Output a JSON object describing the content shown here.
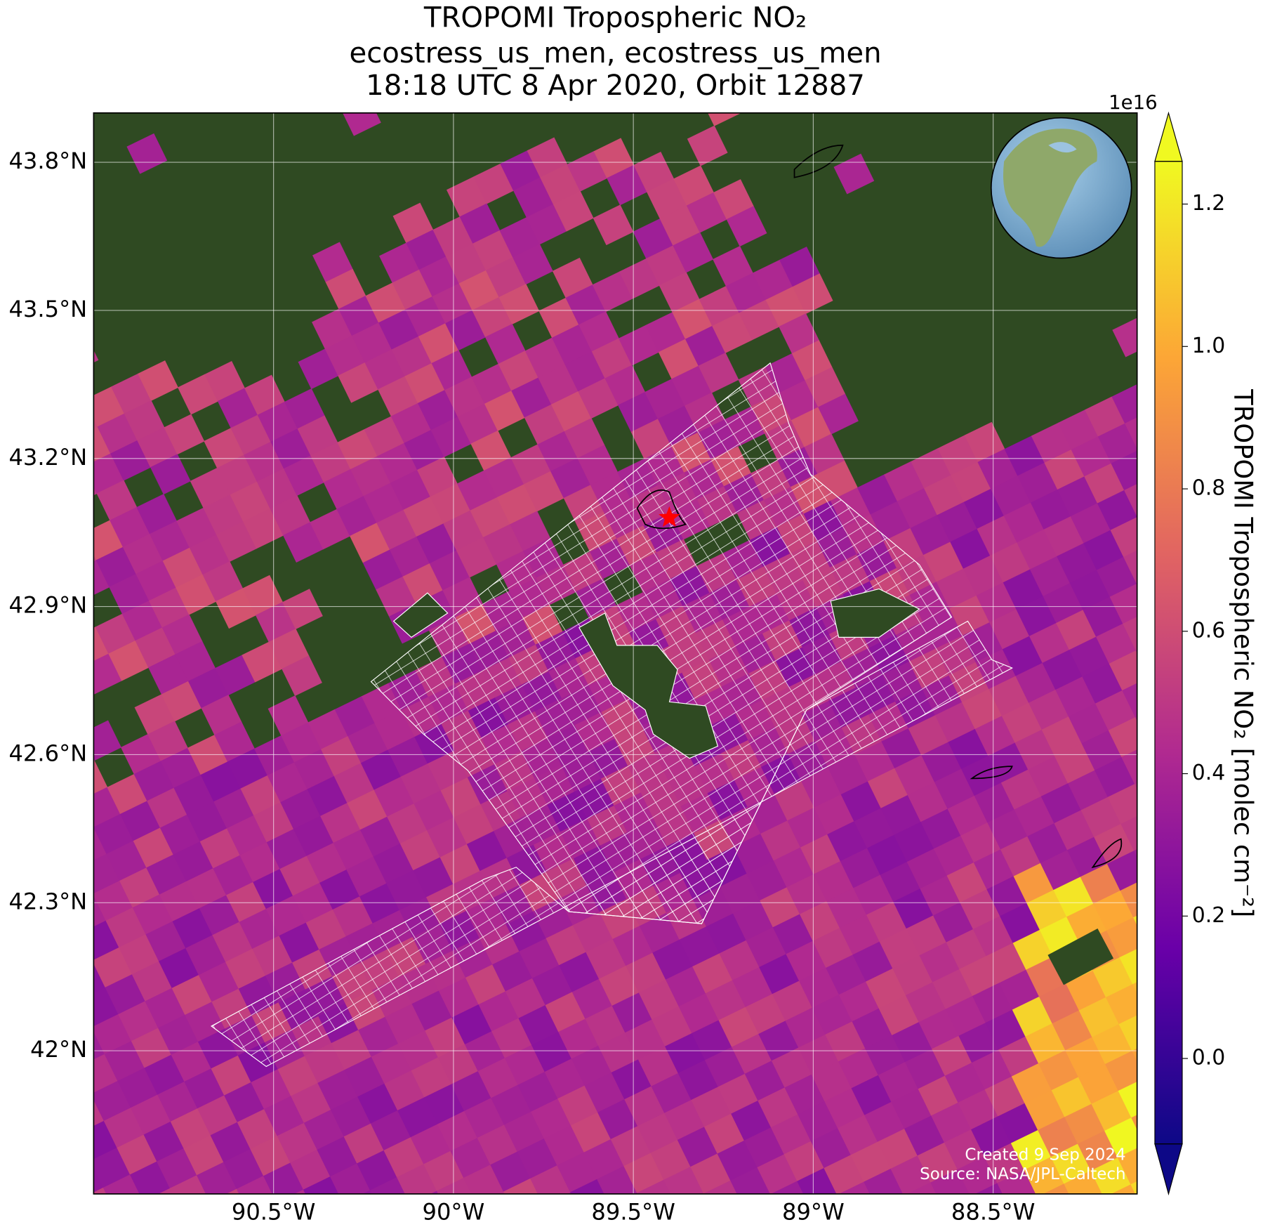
{
  "map": {
    "title_lines": [
      "TROPOMI Tropospheric NO₂",
      "ecostress_us_men, ecostress_us_men",
      "18:18 UTC 8 Apr 2020, Orbit 12887"
    ],
    "xlim": [
      -91.0,
      -88.1
    ],
    "ylim": [
      41.71,
      43.9
    ],
    "lon_ticks": [
      {
        "value": -90.5,
        "label": "90.5°W"
      },
      {
        "value": -90.0,
        "label": "90°W"
      },
      {
        "value": -89.5,
        "label": "89.5°W"
      },
      {
        "value": -89.0,
        "label": "89°W"
      },
      {
        "value": -88.5,
        "label": "88.5°W"
      }
    ],
    "lat_ticks": [
      {
        "value": 43.8,
        "label": "43.8°N"
      },
      {
        "value": 43.5,
        "label": "43.5°N"
      },
      {
        "value": 43.2,
        "label": "43.2°N"
      },
      {
        "value": 42.9,
        "label": "42.9°N"
      },
      {
        "value": 42.6,
        "label": "42.6°N"
      },
      {
        "value": 42.3,
        "label": "42.3°N"
      },
      {
        "value": 42.0,
        "label": "42°N"
      }
    ],
    "grid": true,
    "marker": {
      "lon": -89.4,
      "lat": 43.08,
      "color": "#ff0000"
    },
    "colorbar": {
      "label": "TROPOMI Tropospheric NO₂ [molec cm⁻²]",
      "exponent_label": "1e16",
      "lim": [
        -0.12,
        1.26
      ],
      "ticks": [
        {
          "value": 0.0,
          "label": "0.0"
        },
        0.2,
        0.4,
        0.6,
        0.8,
        {
          "value": 1.0,
          "label": "1.0"
        },
        1.2
      ],
      "colormap": [
        "#0d0887",
        "#6a00a8",
        "#b12a90",
        "#e16462",
        "#fca636",
        "#f0f921"
      ]
    },
    "credits": [
      "Created 9 Sep 2024",
      "Source: NASA/JPL-Caltech"
    ]
  }
}
